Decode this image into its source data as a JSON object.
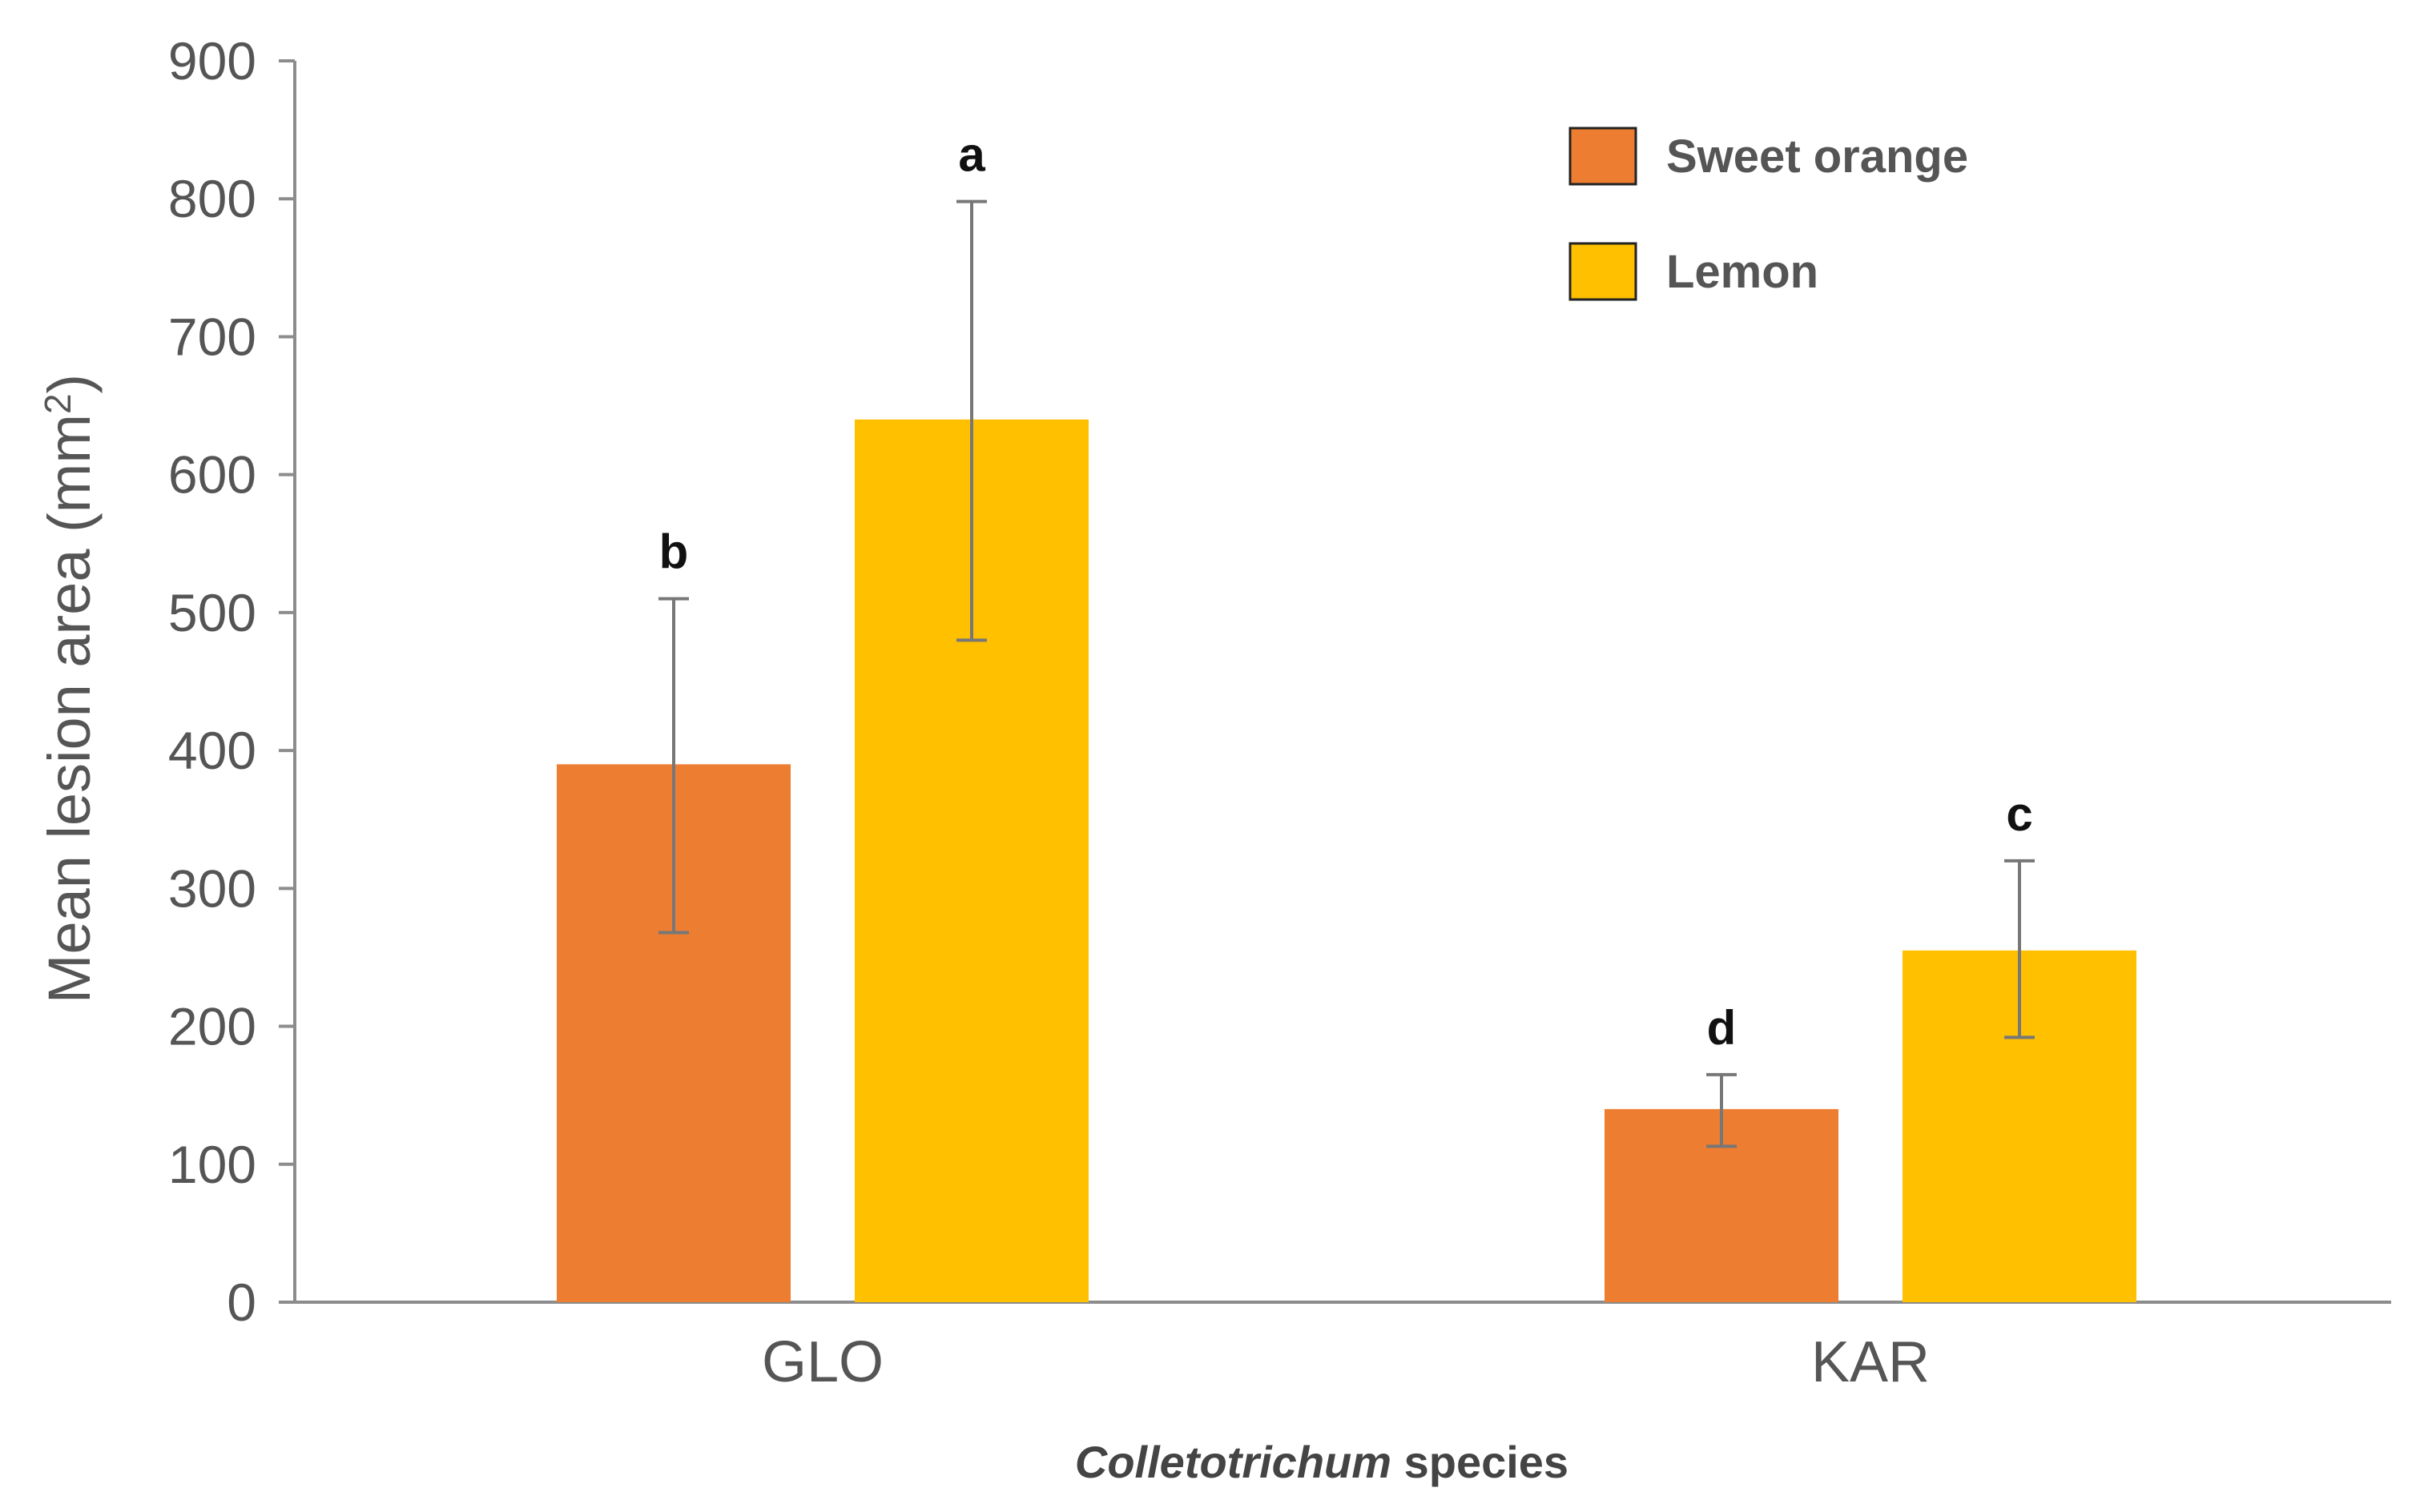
{
  "chart_data": {
    "type": "bar",
    "categories": [
      "GLO",
      "KAR"
    ],
    "series": [
      {
        "name": "Sweet orange",
        "color": "#ED7D31",
        "values": [
          390,
          140
        ],
        "error_low": [
          268,
          113
        ],
        "error_high": [
          510,
          165
        ],
        "significance": [
          "b",
          "d"
        ]
      },
      {
        "name": "Lemon",
        "color": "#FFC000",
        "values": [
          640,
          255
        ],
        "error_low": [
          480,
          192
        ],
        "error_high": [
          798,
          320
        ],
        "significance": [
          "a",
          "c"
        ]
      }
    ],
    "ylabel_main": "Mean lesion area (mm",
    "ylabel_sup": "2",
    "ylabel_end": ")",
    "xlabel_italic": "Colletotrichum",
    "xlabel_rest": " species",
    "ylim": [
      0,
      900
    ],
    "yticks": [
      0,
      100,
      200,
      300,
      400,
      500,
      600,
      700,
      800,
      900
    ],
    "grid": false,
    "legend_position": "top-right"
  }
}
